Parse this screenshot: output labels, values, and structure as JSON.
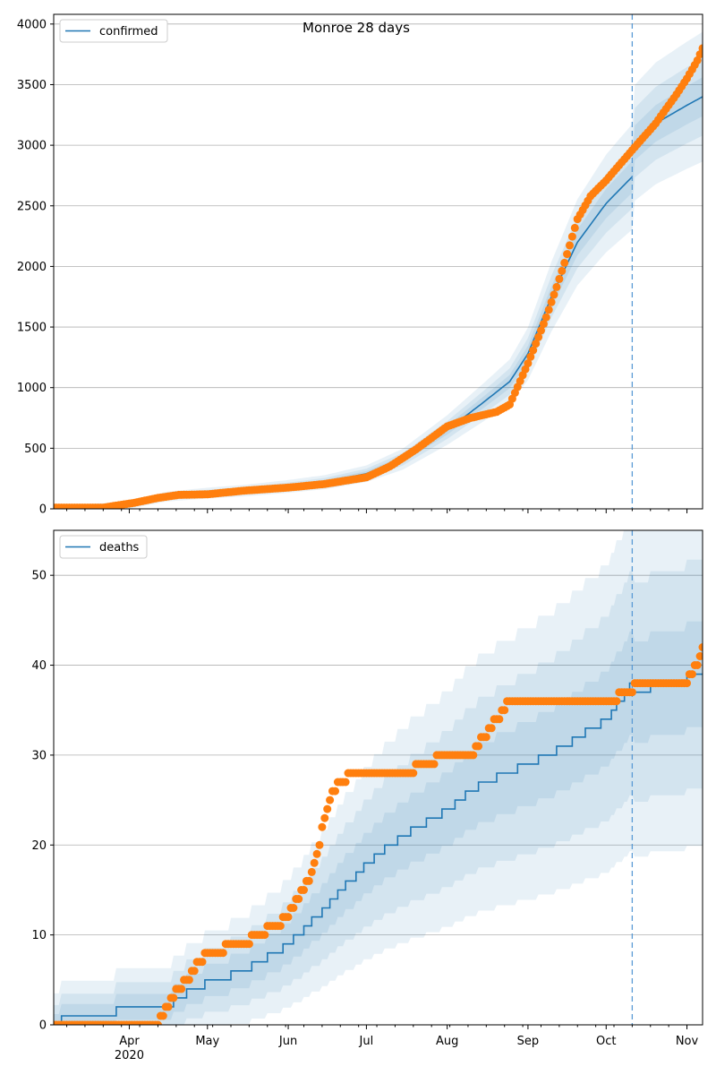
{
  "figure": {
    "title": "Monroe 28 days"
  },
  "chart_data": [
    {
      "type": "line",
      "panel": "top",
      "legend": "confirmed",
      "legend_position": "upper-left",
      "x_unit": "date",
      "xlim": [
        "2020-03-03",
        "2020-11-07"
      ],
      "ylim": [
        0,
        4080
      ],
      "yticks": [
        0,
        500,
        1000,
        1500,
        2000,
        2500,
        3000,
        3500,
        4000
      ],
      "grid": "horizontal",
      "forecast_start": "2020-10-11",
      "series_color": "#1f77b4",
      "observed_color": "#ff7f0e",
      "model_median": {
        "x": [
          "2020-03-03",
          "2020-03-15",
          "2020-04-01",
          "2020-04-15",
          "2020-05-01",
          "2020-05-15",
          "2020-06-01",
          "2020-06-15",
          "2020-07-01",
          "2020-07-15",
          "2020-08-01",
          "2020-08-15",
          "2020-08-25",
          "2020-09-01",
          "2020-09-10",
          "2020-09-20",
          "2020-10-01",
          "2020-10-11"
        ],
        "y": [
          10,
          12,
          30,
          100,
          130,
          150,
          185,
          220,
          290,
          410,
          650,
          880,
          1050,
          1280,
          1750,
          2200,
          2520,
          2740
        ]
      },
      "forecast_median": {
        "x": [
          "2020-10-11",
          "2020-10-20",
          "2020-11-01",
          "2020-11-07"
        ],
        "y": [
          3000,
          3180,
          3330,
          3400
        ]
      },
      "observed_cases": {
        "x": [
          "2020-03-03",
          "2020-03-22",
          "2020-03-28",
          "2020-04-03",
          "2020-04-12",
          "2020-04-20",
          "2020-05-01",
          "2020-05-15",
          "2020-06-01",
          "2020-06-15",
          "2020-07-01",
          "2020-07-10",
          "2020-07-20",
          "2020-08-01",
          "2020-08-10",
          "2020-08-20",
          "2020-08-25",
          "2020-09-01",
          "2020-09-08",
          "2020-09-12",
          "2020-09-15",
          "2020-09-20",
          "2020-09-25",
          "2020-10-01",
          "2020-10-11",
          "2020-10-20",
          "2020-10-28",
          "2020-11-01",
          "2020-11-05",
          "2020-11-07"
        ],
        "y": [
          10,
          10,
          30,
          50,
          90,
          115,
          120,
          150,
          175,
          205,
          260,
          350,
          490,
          680,
          750,
          800,
          860,
          1200,
          1580,
          1830,
          2030,
          2390,
          2580,
          2710,
          2960,
          3180,
          3420,
          3550,
          3700,
          3800
        ]
      }
    },
    {
      "type": "line",
      "panel": "bottom",
      "legend": "deaths",
      "legend_position": "upper-left",
      "x_unit": "date",
      "xlim": [
        "2020-03-03",
        "2020-11-07"
      ],
      "ylim": [
        0,
        55
      ],
      "yticks": [
        0,
        10,
        20,
        30,
        40,
        50
      ],
      "xticks": [
        "Apr",
        "May",
        "Jun",
        "Jul",
        "Aug",
        "Sep",
        "Oct",
        "Nov"
      ],
      "xtick_dates": [
        "2020-04-01",
        "2020-05-01",
        "2020-06-01",
        "2020-07-01",
        "2020-08-01",
        "2020-09-01",
        "2020-10-01",
        "2020-11-01"
      ],
      "year_label": "2020",
      "grid": "horizontal",
      "forecast_start": "2020-10-11",
      "model_median": {
        "x": [
          "2020-03-03",
          "2020-03-08",
          "2020-04-15",
          "2020-04-25",
          "2020-05-15",
          "2020-06-01",
          "2020-06-15",
          "2020-07-01",
          "2020-07-15",
          "2020-08-01",
          "2020-08-15",
          "2020-09-01",
          "2020-09-15",
          "2020-10-01",
          "2020-10-11"
        ],
        "y": [
          0,
          1,
          2,
          4,
          6,
          9,
          13,
          18,
          21,
          24,
          27,
          29,
          31,
          34,
          38
        ]
      },
      "forecast_median": {
        "x": [
          "2020-10-11",
          "2020-10-25",
          "2020-11-07"
        ],
        "y": [
          37,
          38,
          39
        ]
      },
      "observed_deaths": {
        "x": [
          "2020-03-03",
          "2020-04-12",
          "2020-04-20",
          "2020-05-01",
          "2020-05-15",
          "2020-06-01",
          "2020-06-10",
          "2020-06-18",
          "2020-06-25",
          "2020-07-15",
          "2020-08-01",
          "2020-08-10",
          "2020-08-25",
          "2020-09-01",
          "2020-10-01",
          "2020-10-11",
          "2020-10-12",
          "2020-10-31",
          "2020-11-03",
          "2020-11-05",
          "2020-11-07"
        ],
        "y": [
          0,
          0,
          4,
          8,
          9,
          12,
          17,
          26,
          28,
          28,
          30,
          30,
          36,
          36,
          36,
          37,
          38,
          38,
          39,
          40,
          42
        ]
      }
    }
  ]
}
